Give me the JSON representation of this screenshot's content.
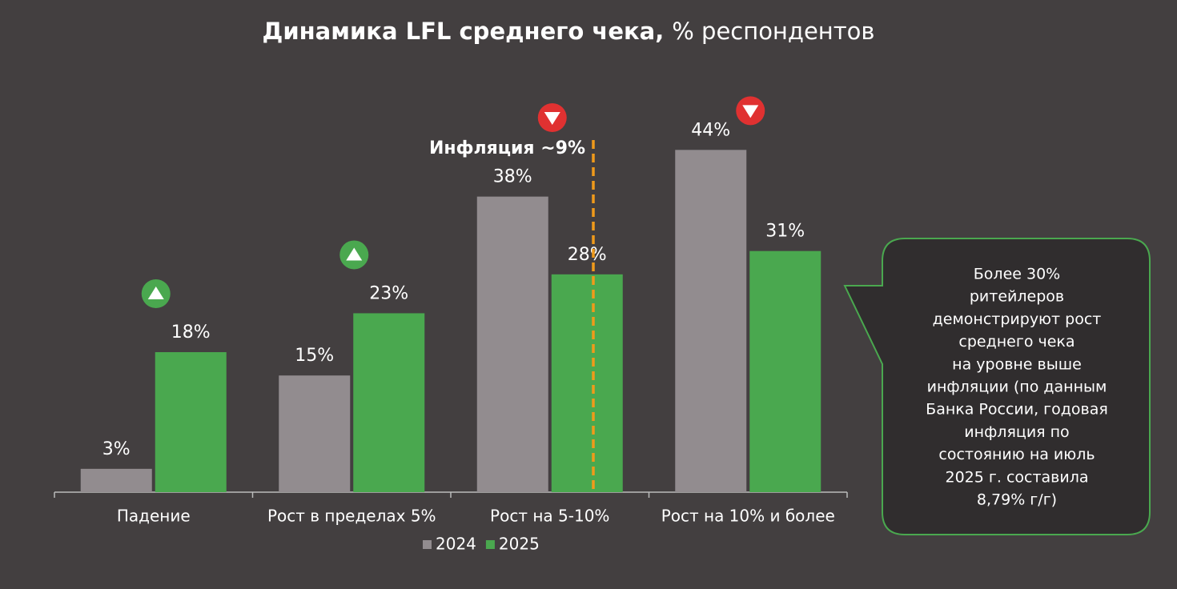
{
  "chart_data": {
    "type": "bar",
    "title": "Динамика LFL среднего чека,",
    "subtitle": "% респондентов",
    "categories": [
      "Падение",
      "Рост в пределах 5%",
      "Рост на 5-10%",
      "Рост на 10% и более"
    ],
    "series": [
      {
        "name": "2024",
        "color": "#928c8f",
        "values": [
          3,
          15,
          38,
          44
        ],
        "value_labels": [
          "3%",
          "15%",
          "38%",
          "44%"
        ]
      },
      {
        "name": "2025",
        "color": "#4aa84f",
        "values": [
          18,
          23,
          28,
          31
        ],
        "value_labels": [
          "18%",
          "23%",
          "28%",
          "31%"
        ]
      }
    ],
    "trend": [
      "up",
      "up",
      "down",
      "down"
    ],
    "trend_colors": {
      "up": "#4aa84f",
      "down": "#e03131"
    },
    "annotation": "Инфляция ~9%",
    "annotation_color": "#f09a1a",
    "callout": [
      "Более 30%",
      "ритейлеров",
      "демонстрируют рост",
      "среднего чека",
      "на уровне выше",
      "инфляции (по данным",
      "Банка России, годовая",
      "инфляция по",
      "состоянию на июль",
      "2025 г. составила",
      "8,79% г/г)"
    ],
    "legend": "bottom"
  }
}
